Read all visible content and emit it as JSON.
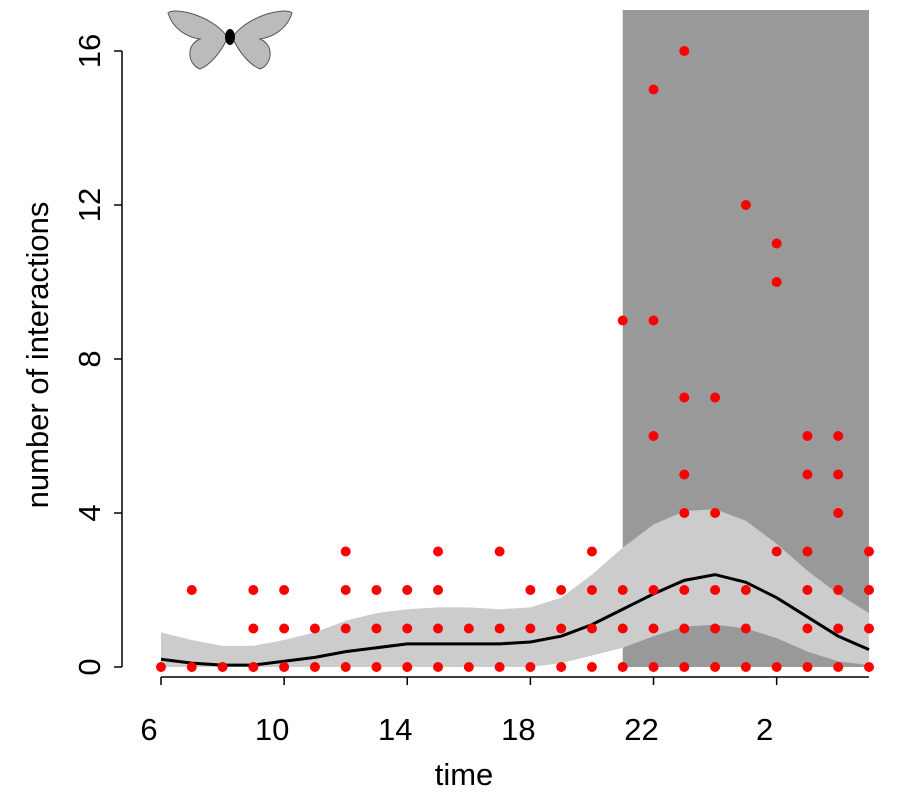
{
  "chart_data": {
    "type": "scatter",
    "xlabel": "time",
    "ylabel": "number of interactions",
    "xlim": [
      6,
      29
    ],
    "ylim": [
      0,
      16
    ],
    "xticks": [
      6,
      10,
      14,
      18,
      22,
      {
        "value": 26,
        "label": "2"
      }
    ],
    "yticks": [
      0,
      4,
      8,
      12,
      16
    ],
    "night": {
      "from": 21,
      "to": 29,
      "color": "#999999"
    },
    "points": {
      "color": "#ff0000",
      "x": [
        6,
        7,
        7,
        8,
        9,
        9,
        9,
        10,
        10,
        10,
        11,
        11,
        12,
        12,
        12,
        12,
        13,
        13,
        13,
        14,
        14,
        14,
        15,
        15,
        15,
        15,
        16,
        16,
        17,
        17,
        17,
        18,
        18,
        18,
        19,
        19,
        19,
        20,
        20,
        20,
        20,
        21,
        21,
        21,
        21,
        22,
        22,
        22,
        22,
        22,
        22,
        23,
        23,
        23,
        23,
        23,
        23,
        23,
        24,
        24,
        24,
        24,
        24,
        25,
        25,
        25,
        25,
        26,
        26,
        26,
        26,
        27,
        27,
        27,
        27,
        27,
        27,
        28,
        28,
        28,
        28,
        28,
        28,
        29,
        29,
        29,
        29
      ],
      "y": [
        0,
        0,
        2,
        0,
        0,
        1,
        2,
        0,
        1,
        2,
        0,
        1,
        0,
        1,
        2,
        3,
        0,
        1,
        2,
        0,
        1,
        2,
        0,
        1,
        2,
        3,
        0,
        1,
        0,
        1,
        3,
        0,
        1,
        2,
        0,
        1,
        2,
        0,
        1,
        2,
        3,
        0,
        1,
        2,
        9,
        0,
        1,
        2,
        6,
        9,
        15,
        0,
        1,
        2,
        4,
        5,
        7,
        16,
        0,
        1,
        2,
        4,
        7,
        0,
        1,
        2,
        12,
        0,
        3,
        10,
        11,
        0,
        1,
        2,
        3,
        5,
        6,
        0,
        1,
        2,
        4,
        5,
        6,
        0,
        1,
        2,
        3
      ]
    },
    "fit": {
      "color": "#000000",
      "band_color": "#cccccc",
      "x": [
        6,
        7,
        8,
        9,
        10,
        11,
        12,
        13,
        14,
        15,
        16,
        17,
        18,
        19,
        20,
        21,
        22,
        23,
        24,
        25,
        26,
        27,
        28,
        29
      ],
      "values": [
        0.2,
        0.1,
        0.05,
        0.05,
        0.15,
        0.25,
        0.4,
        0.5,
        0.6,
        0.6,
        0.6,
        0.6,
        0.65,
        0.8,
        1.1,
        1.5,
        1.9,
        2.25,
        2.4,
        2.2,
        1.8,
        1.3,
        0.8,
        0.45
      ],
      "upper": [
        0.9,
        0.7,
        0.55,
        0.55,
        0.7,
        0.9,
        1.2,
        1.4,
        1.5,
        1.55,
        1.55,
        1.5,
        1.55,
        1.8,
        2.4,
        3.1,
        3.7,
        4.05,
        4.1,
        3.8,
        3.2,
        2.5,
        1.9,
        1.4
      ],
      "lower": [
        0,
        0,
        0,
        0,
        0,
        0,
        0,
        0,
        0,
        0,
        0,
        0,
        0,
        0.1,
        0.3,
        0.5,
        0.8,
        1.05,
        1.1,
        1.0,
        0.75,
        0.4,
        0.15,
        0.05
      ]
    }
  }
}
